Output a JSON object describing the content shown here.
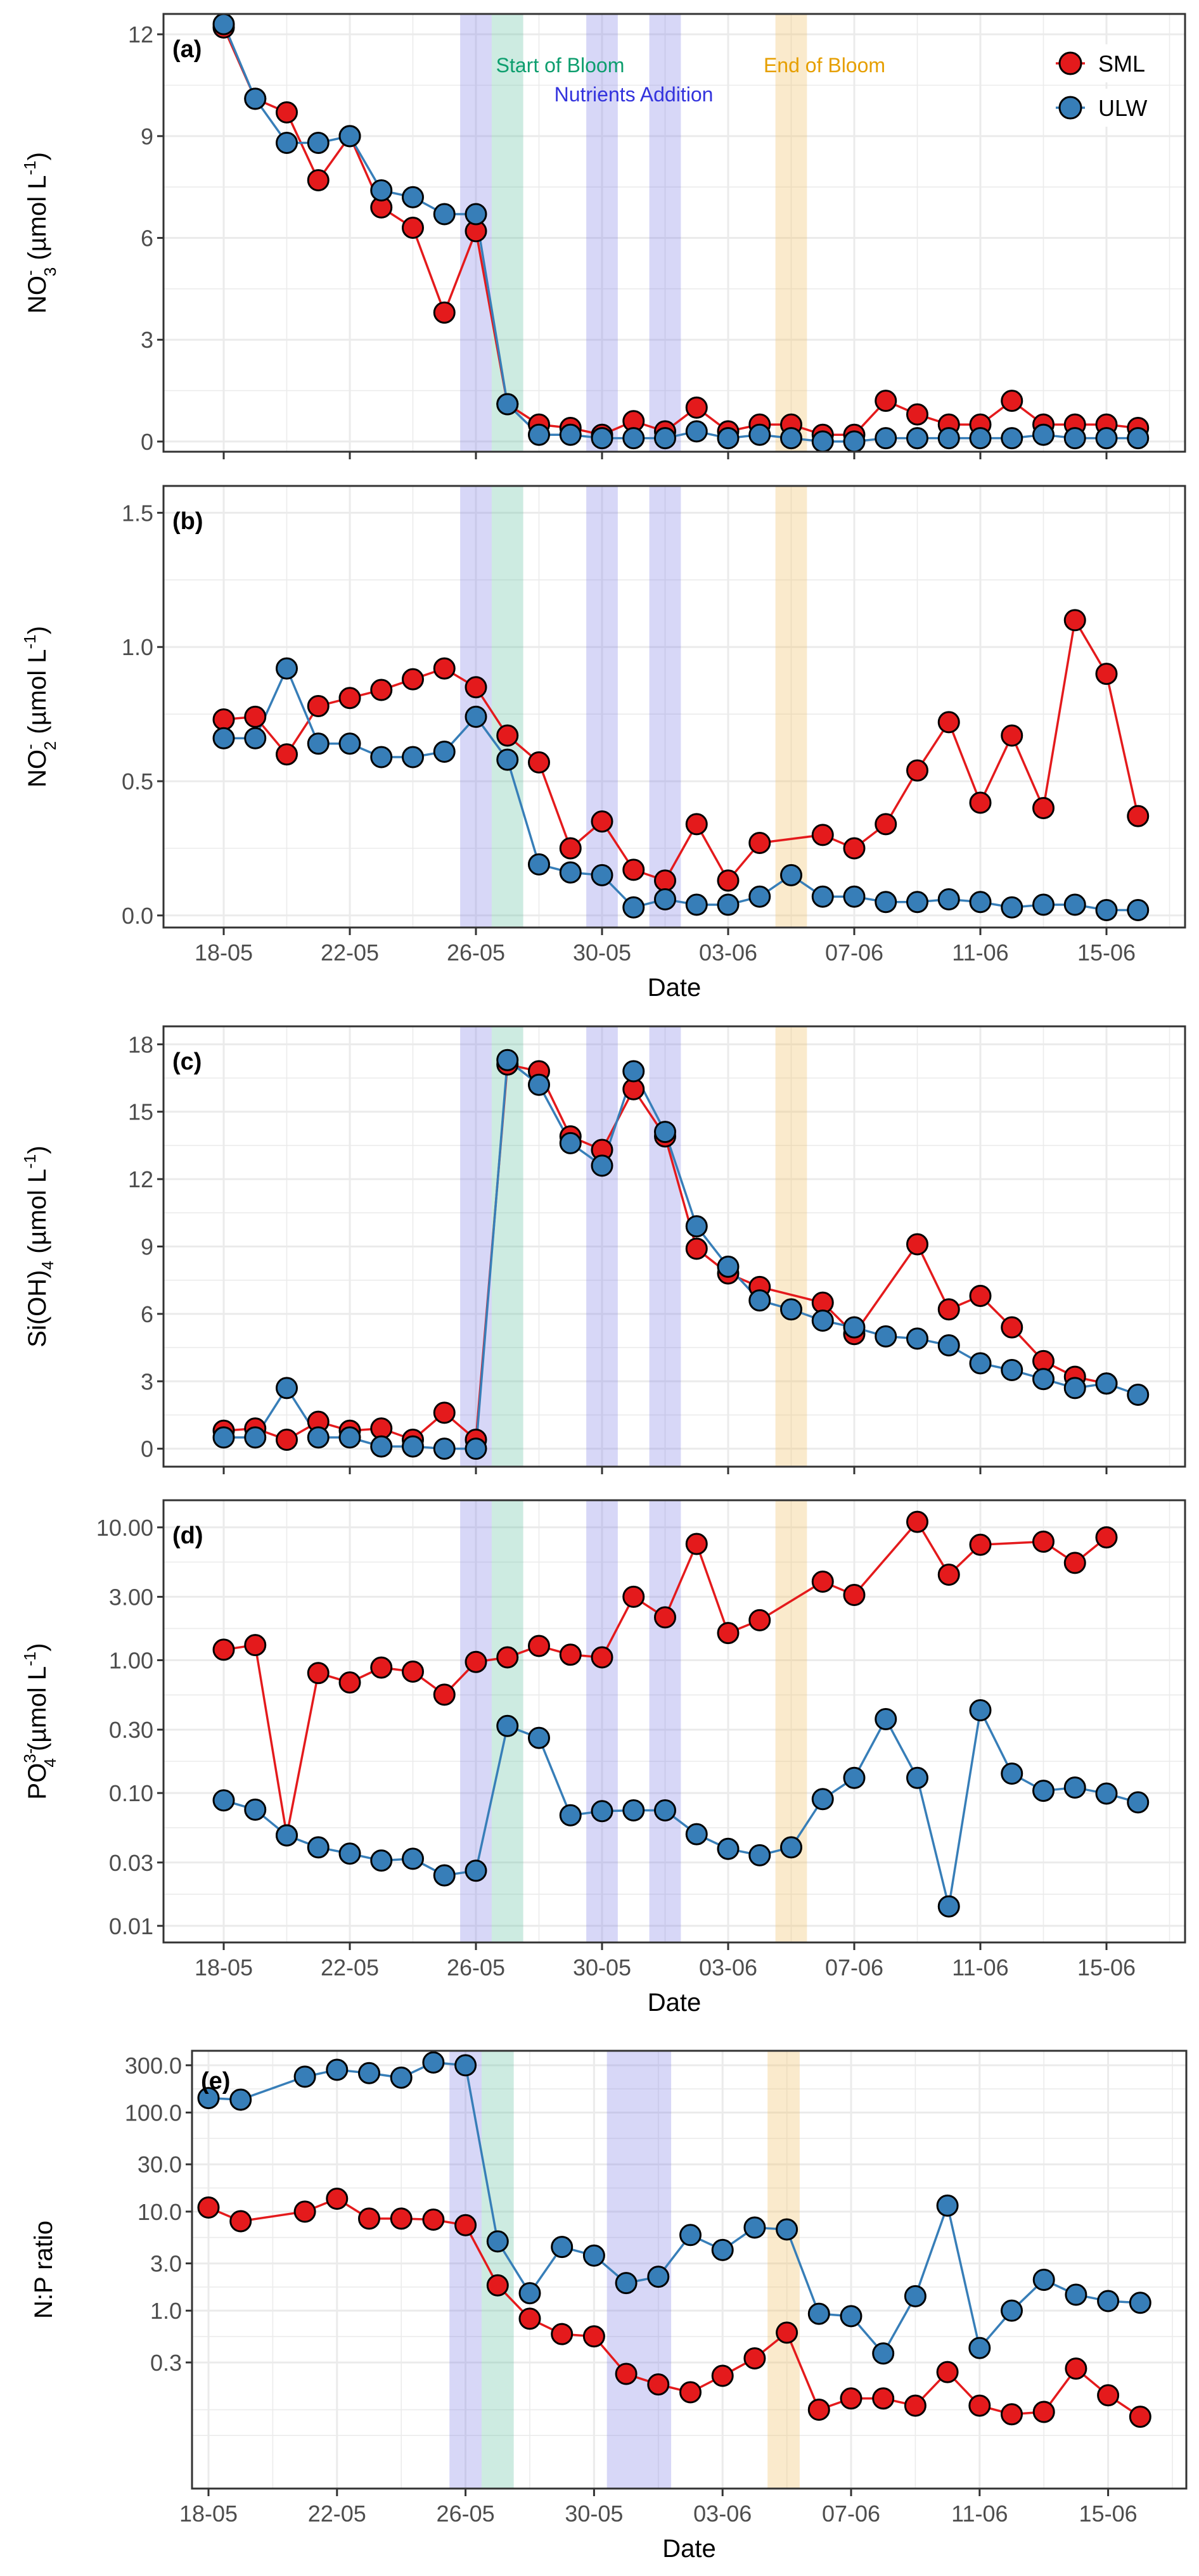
{
  "figure": {
    "legend": [
      {
        "name": "SML",
        "color": "#e41a1c"
      },
      {
        "name": "ULW",
        "color": "#377eb8"
      }
    ],
    "legend_position": "top-right",
    "annotations": [
      {
        "label": "Start of Bloom",
        "color": "#0d9e6e"
      },
      {
        "label": "Nutrients Addition",
        "color": "#3333dd"
      },
      {
        "label": "End of Bloom",
        "color": "#e69f00"
      }
    ],
    "shading": {
      "nutrients_addition_color": "#7b7be6",
      "start_of_bloom_color": "#66c2a5",
      "end_of_bloom_color": "#f2c46d"
    }
  },
  "chart_data": [
    {
      "id": "a",
      "type": "line",
      "panel_tag": "(a)",
      "ylabel": "NO3- (µmol L-1)",
      "ylabel_parts": {
        "main": "NO",
        "sub": "3",
        "sup": "-",
        "unit": "(µmol L",
        "unit_sup": "-1",
        "close": ")"
      },
      "xlabel": "",
      "yscale": "linear",
      "ylim": [
        -0.3,
        12.6
      ],
      "yticks": [
        0,
        3,
        6,
        9,
        12
      ],
      "ytick_labels": [
        "0",
        "3",
        "6",
        "9",
        "12"
      ],
      "show_xtick_labels": false,
      "grid": true,
      "show_legend": true,
      "show_annotations": true,
      "x": [
        "18-05",
        "19-05",
        "20-05",
        "21-05",
        "22-05",
        "23-05",
        "24-05",
        "25-05",
        "26-05",
        "27-05",
        "28-05",
        "29-05",
        "30-05",
        "31-05",
        "01-06",
        "02-06",
        "03-06",
        "04-06",
        "05-06",
        "06-06",
        "07-06",
        "08-06",
        "09-06",
        "10-06",
        "11-06",
        "12-06",
        "13-06",
        "14-06",
        "15-06",
        "16-06"
      ],
      "series": [
        {
          "name": "SML",
          "values": [
            12.2,
            10.1,
            9.7,
            7.7,
            9.0,
            6.9,
            6.3,
            3.8,
            6.2,
            1.1,
            0.5,
            0.4,
            0.2,
            0.6,
            0.3,
            1.0,
            0.3,
            0.5,
            0.5,
            0.2,
            0.2,
            1.2,
            0.8,
            0.5,
            0.5,
            1.2,
            0.5,
            0.5,
            0.5,
            0.4
          ]
        },
        {
          "name": "ULW",
          "values": [
            12.3,
            10.1,
            8.8,
            8.8,
            9.0,
            7.4,
            7.2,
            6.7,
            6.7,
            1.1,
            0.2,
            0.2,
            0.1,
            0.1,
            0.1,
            0.3,
            0.1,
            0.2,
            0.1,
            0.0,
            0.0,
            0.1,
            0.1,
            0.1,
            0.1,
            0.1,
            0.2,
            0.1,
            0.1,
            0.1
          ]
        }
      ]
    },
    {
      "id": "b",
      "type": "line",
      "panel_tag": "(b)",
      "ylabel": "NO2- (µmol L-1)",
      "ylabel_parts": {
        "main": "NO",
        "sub": "2",
        "sup": "-",
        "unit": "(µmol L",
        "unit_sup": "-1",
        "close": ")"
      },
      "xlabel": "Date",
      "yscale": "linear",
      "ylim": [
        -0.045,
        1.6
      ],
      "yticks": [
        0.0,
        0.5,
        1.0,
        1.5
      ],
      "ytick_labels": [
        "0.0",
        "0.5",
        "1.0",
        "1.5"
      ],
      "show_xtick_labels": true,
      "grid": true,
      "show_legend": false,
      "show_annotations": false,
      "x": [
        "18-05",
        "19-05",
        "20-05",
        "21-05",
        "22-05",
        "23-05",
        "24-05",
        "25-05",
        "26-05",
        "27-05",
        "28-05",
        "29-05",
        "30-05",
        "31-05",
        "01-06",
        "02-06",
        "03-06",
        "04-06",
        "05-06",
        "06-06",
        "07-06",
        "08-06",
        "09-06",
        "10-06",
        "11-06",
        "12-06",
        "13-06",
        "14-06",
        "15-06",
        "16-06"
      ],
      "series": [
        {
          "name": "SML",
          "values": [
            0.73,
            0.74,
            0.6,
            0.78,
            0.81,
            0.84,
            0.88,
            0.92,
            0.85,
            0.67,
            0.57,
            0.25,
            0.35,
            0.17,
            0.13,
            0.34,
            0.13,
            0.27,
            null,
            0.3,
            0.25,
            0.34,
            0.54,
            0.72,
            0.42,
            0.67,
            0.4,
            1.1,
            0.9,
            0.37
          ]
        },
        {
          "name": "ULW",
          "values": [
            0.66,
            0.66,
            0.92,
            0.64,
            0.64,
            0.59,
            0.59,
            0.61,
            0.74,
            0.58,
            0.19,
            0.16,
            0.15,
            0.03,
            0.06,
            0.04,
            0.04,
            0.07,
            0.15,
            0.07,
            0.07,
            0.05,
            0.05,
            0.06,
            0.05,
            0.03,
            0.04,
            0.04,
            0.02,
            0.02
          ]
        }
      ]
    },
    {
      "id": "c",
      "type": "line",
      "panel_tag": "(c)",
      "ylabel": "Si(OH)4 (µmol L-1)",
      "ylabel_parts": {
        "main": "Si(OH)",
        "sub": "4",
        "sup": "",
        "unit": "(µmol L",
        "unit_sup": "-1",
        "close": ")"
      },
      "xlabel": "",
      "yscale": "linear",
      "ylim": [
        -0.8,
        18.8
      ],
      "yticks": [
        0,
        3,
        6,
        9,
        12,
        15,
        18
      ],
      "ytick_labels": [
        "0",
        "3",
        "6",
        "9",
        "12",
        "15",
        "18"
      ],
      "show_xtick_labels": false,
      "grid": true,
      "show_legend": false,
      "show_annotations": false,
      "x": [
        "18-05",
        "19-05",
        "20-05",
        "21-05",
        "22-05",
        "23-05",
        "24-05",
        "25-05",
        "26-05",
        "27-05",
        "28-05",
        "29-05",
        "30-05",
        "31-05",
        "01-06",
        "02-06",
        "03-06",
        "04-06",
        "05-06",
        "06-06",
        "07-06",
        "08-06",
        "09-06",
        "10-06",
        "11-06",
        "12-06",
        "13-06",
        "14-06",
        "15-06",
        "16-06"
      ],
      "series": [
        {
          "name": "SML",
          "values": [
            0.8,
            0.9,
            0.4,
            1.2,
            0.8,
            0.9,
            0.4,
            1.6,
            0.4,
            17.1,
            16.8,
            13.9,
            13.3,
            16.0,
            13.9,
            8.9,
            7.8,
            7.2,
            null,
            6.5,
            5.1,
            null,
            9.1,
            6.2,
            6.8,
            5.4,
            3.9,
            3.2,
            2.9,
            null
          ]
        },
        {
          "name": "ULW",
          "values": [
            0.5,
            0.5,
            2.7,
            0.5,
            0.5,
            0.1,
            0.1,
            0.0,
            0.0,
            17.3,
            16.2,
            13.6,
            12.6,
            16.8,
            14.1,
            9.9,
            8.1,
            6.6,
            6.2,
            5.7,
            5.4,
            5.0,
            4.9,
            4.6,
            3.8,
            3.5,
            3.1,
            2.7,
            2.9,
            2.4
          ]
        }
      ]
    },
    {
      "id": "d",
      "type": "line",
      "panel_tag": "(d)",
      "ylabel": "PO4 3- (µmol L-1)",
      "ylabel_parts": {
        "main": "PO",
        "sub": "4",
        "sup": "3-",
        "unit": "(µmol L",
        "unit_sup": "-1",
        "close": ")"
      },
      "xlabel": "Date",
      "yscale": "log",
      "ylim": [
        0.0075,
        16
      ],
      "yticks": [
        0.01,
        0.03,
        0.1,
        0.3,
        1.0,
        3.0,
        10.0
      ],
      "ytick_labels": [
        "0.01",
        "0.03",
        "0.10",
        "0.30",
        "1.00",
        "3.00",
        "10.00"
      ],
      "show_xtick_labels": true,
      "grid": true,
      "show_legend": false,
      "show_annotations": false,
      "x": [
        "18-05",
        "19-05",
        "20-05",
        "21-05",
        "22-05",
        "23-05",
        "24-05",
        "25-05",
        "26-05",
        "27-05",
        "28-05",
        "29-05",
        "30-05",
        "31-05",
        "01-06",
        "02-06",
        "03-06",
        "04-06",
        "05-06",
        "06-06",
        "07-06",
        "08-06",
        "09-06",
        "10-06",
        "11-06",
        "12-06",
        "13-06",
        "14-06",
        "15-06",
        "16-06"
      ],
      "series": [
        {
          "name": "SML",
          "values": [
            1.2,
            1.3,
            0.048,
            0.8,
            0.68,
            0.88,
            0.82,
            0.55,
            0.97,
            1.05,
            1.28,
            1.1,
            1.05,
            3.0,
            2.1,
            7.5,
            1.6,
            2.0,
            null,
            3.9,
            3.1,
            null,
            11.0,
            4.4,
            7.4,
            null,
            7.8,
            5.4,
            8.4,
            null
          ]
        },
        {
          "name": "ULW",
          "values": [
            0.088,
            0.075,
            0.048,
            0.039,
            0.035,
            0.031,
            0.032,
            0.024,
            0.026,
            0.32,
            0.26,
            0.068,
            0.073,
            0.074,
            0.074,
            0.049,
            0.038,
            0.034,
            0.039,
            0.09,
            0.13,
            0.36,
            0.13,
            0.014,
            0.42,
            0.14,
            0.104,
            0.11,
            0.099,
            0.085
          ]
        }
      ]
    },
    {
      "id": "e",
      "type": "line",
      "panel_tag": "(e)",
      "ylabel": "N:P ratio",
      "ylabel_parts": {
        "main": "N:P ratio",
        "sub": "",
        "sup": "",
        "unit": "",
        "unit_sup": "",
        "close": ""
      },
      "xlabel": "Date",
      "yscale": "log",
      "ylim": [
        0.016,
        420
      ],
      "yticks": [
        0.3,
        1.0,
        3.0,
        10.0,
        30.0,
        100.0,
        300.0
      ],
      "ytick_labels": [
        "0.3",
        "1.0",
        "3.0",
        "10.0",
        "30.0",
        "100.0",
        "300.0"
      ],
      "show_xtick_labels": true,
      "grid": true,
      "show_legend": false,
      "show_annotations": false,
      "x": [
        "18-05",
        "19-05",
        "20-05",
        "21-05",
        "22-05",
        "23-05",
        "24-05",
        "25-05",
        "26-05",
        "27-05",
        "28-05",
        "29-05",
        "30-05",
        "31-05",
        "01-06",
        "02-06",
        "03-06",
        "04-06",
        "05-06",
        "06-06",
        "07-06",
        "08-06",
        "09-06",
        "10-06",
        "11-06",
        "12-06",
        "13-06",
        "14-06",
        "15-06",
        "16-06"
      ],
      "series": [
        {
          "name": "SML",
          "values": [
            11.0,
            8.0,
            null,
            10.0,
            13.5,
            8.5,
            8.5,
            8.3,
            7.3,
            1.8,
            0.83,
            0.58,
            0.55,
            0.23,
            0.18,
            0.15,
            0.22,
            0.33,
            0.6,
            0.1,
            0.13,
            0.13,
            0.11,
            0.24,
            0.11,
            0.09,
            0.095,
            0.26,
            0.14,
            0.085
          ]
        },
        {
          "name": "ULW",
          "values": [
            140,
            135,
            null,
            230,
            270,
            250,
            225,
            320,
            300,
            5.0,
            1.5,
            4.4,
            3.6,
            1.9,
            2.2,
            5.8,
            4.1,
            6.9,
            6.6,
            0.93,
            0.88,
            0.37,
            1.4,
            11.5,
            0.42,
            1.0,
            2.05,
            1.45,
            1.25,
            1.2
          ]
        }
      ]
    }
  ]
}
